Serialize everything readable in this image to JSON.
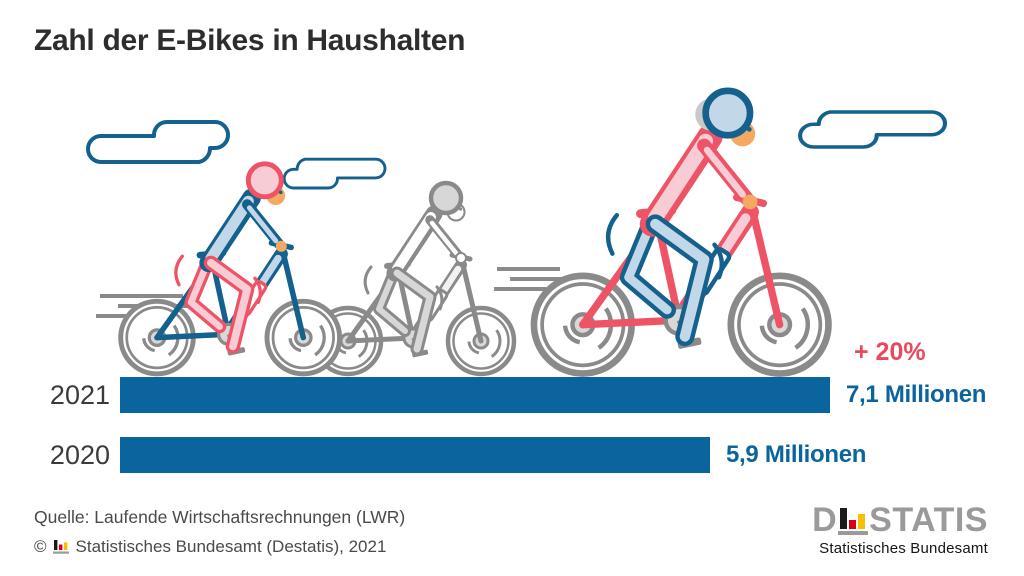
{
  "title": "Zahl der E-Bikes in Haushalten",
  "chart_data": {
    "type": "bar",
    "orientation": "horizontal",
    "categories": [
      "2021",
      "2020"
    ],
    "values": [
      7.1,
      5.9
    ],
    "value_labels": [
      "7,1 Millionen",
      "5,9 Millionen"
    ],
    "unit": "Millionen",
    "annotation": {
      "text": "+ 20%",
      "applies_to": "2021",
      "color": "#E8495E"
    },
    "bar_color": "#0A649E",
    "value_label_color": "#0A649E",
    "category_label_color": "#3B3B3B",
    "legend": "none",
    "grid": "off"
  },
  "footer": {
    "source": "Quelle: Laufende Wirtschaftsrechnungen (LWR)",
    "copyright_symbol": "©",
    "copyright": "Statistisches Bundesamt (Destatis), 2021"
  },
  "logo": {
    "prefix": "D",
    "suffix": "STATIS",
    "subtitle": "Statistisches Bundesamt",
    "colors": {
      "text": "#9A9A9A",
      "black_bar": "#1A1A1A",
      "red_bar": "#D90013",
      "gold_bar": "#F8BE00"
    }
  },
  "illustration": {
    "palette": {
      "blue": "#15618E",
      "light_blue": "#C2D8E8",
      "red": "#EE5465",
      "pink": "#F8CCD5",
      "gray": "#8A8A8A",
      "light_gray": "#D7D7D7",
      "skin": "#F3A961"
    }
  }
}
